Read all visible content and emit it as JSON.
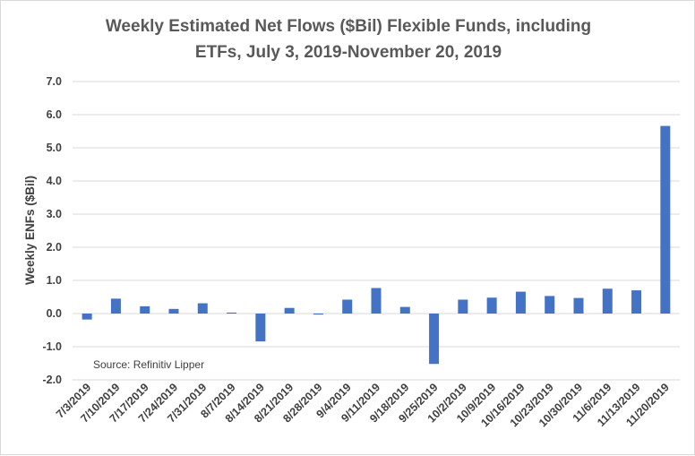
{
  "chart_data": {
    "type": "bar",
    "title_line1": "Weekly Estimated Net Flows ($Bil) Flexible Funds, including",
    "title_line2": "ETFs, July 3, 2019-November 20, 2019",
    "ylabel": "Weekly ENFs ($Bil)",
    "source": "Source: Refinitiv Lipper",
    "ylim": [
      -2.0,
      7.0
    ],
    "yticks": [
      "7.0",
      "6.0",
      "5.0",
      "4.0",
      "3.0",
      "2.0",
      "1.0",
      "0.0",
      "-1.0",
      "-2.0"
    ],
    "grid": true,
    "bar_color": "#4472c4",
    "categories": [
      "7/3/2019",
      "7/10/2019",
      "7/17/2019",
      "7/24/2019",
      "7/31/2019",
      "8/7/2019",
      "8/14/2019",
      "8/21/2019",
      "8/28/2019",
      "9/4/2019",
      "9/11/2019",
      "9/18/2019",
      "9/25/2019",
      "10/2/2019",
      "10/9/2019",
      "10/16/2019",
      "10/23/2019",
      "10/30/2019",
      "11/6/2019",
      "11/13/2019",
      "11/20/2019"
    ],
    "values": [
      -0.18,
      0.45,
      0.22,
      0.14,
      0.31,
      0.03,
      -0.84,
      0.17,
      -0.03,
      0.42,
      0.77,
      0.2,
      -1.52,
      0.42,
      0.48,
      0.66,
      0.53,
      0.47,
      0.75,
      0.7,
      5.66
    ]
  }
}
